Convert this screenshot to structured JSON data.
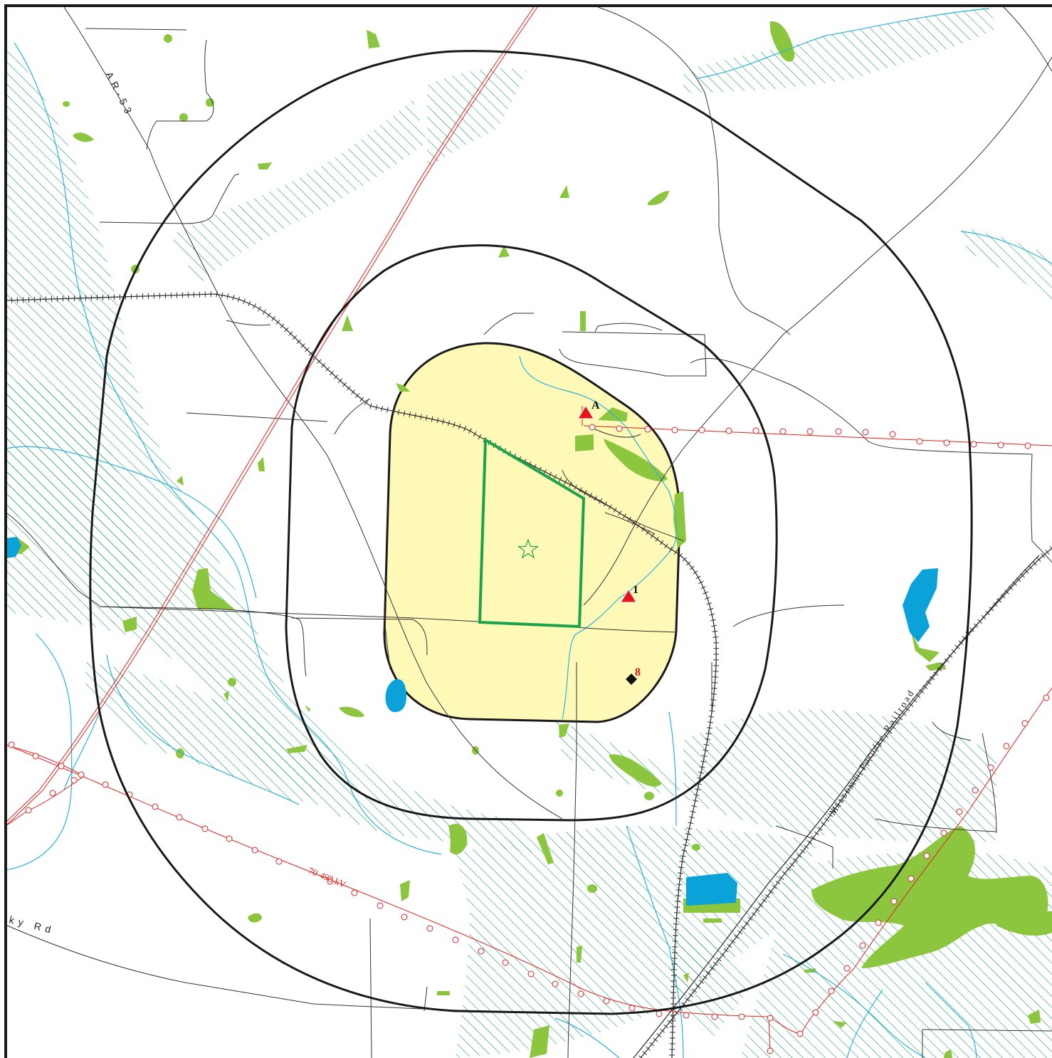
{
  "map": {
    "colors": {
      "background": "#ffffff",
      "border": "#1a1a1a",
      "buffer_line": "#1a1a1a",
      "project_area_fill": "#fff9b8",
      "site_boundary": "#1aa34a",
      "wetland_hatch": "#1f9a6e",
      "vegetation": "#8cc63f",
      "water": "#0aa2d8",
      "stream": "#2ab3d8",
      "powerline": "#e0201e",
      "road": "#333333",
      "railroad": "#333333",
      "site_marker": "#e8141b",
      "well_marker": "#111111",
      "well_label": "#e8141b"
    },
    "road_labels": {
      "ar53": "AR-53",
      "west_road": "ky Rd"
    },
    "railroad_label": "Missouri Pacific Railroad",
    "powerline_label": "70-498 kV",
    "sites": [
      {
        "id": "site-a",
        "label": "A",
        "icon": "red-triangle-icon"
      },
      {
        "id": "site-1",
        "label": "1",
        "icon": "red-triangle-icon"
      }
    ],
    "wells": [
      {
        "id": "well-8",
        "label": "8",
        "icon": "black-diamond-icon"
      }
    ],
    "center_marker": {
      "icon": "star-icon"
    }
  }
}
